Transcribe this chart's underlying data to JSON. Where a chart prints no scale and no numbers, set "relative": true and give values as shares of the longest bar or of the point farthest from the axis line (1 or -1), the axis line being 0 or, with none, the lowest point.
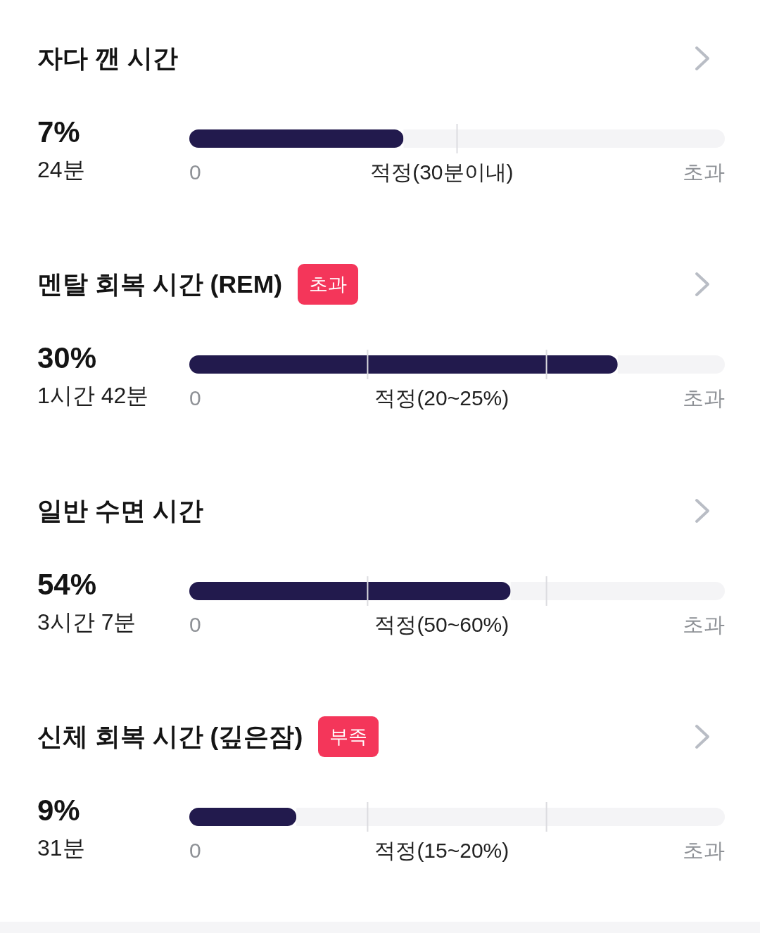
{
  "chart_data": [
    {
      "type": "bar",
      "orientation": "horizontal",
      "stacked": true,
      "relative": true,
      "title": "자다 깬 시간",
      "categories": [
        null
      ],
      "series": [
        {
          "color": "#221a4d",
          "values": [
            0.4
          ]
        },
        {
          "color": "#f4f4f6",
          "values": [
            0.6
          ]
        }
      ],
      "ref_lines": [
        {
          "axis": "x",
          "value": 0.5,
          "color": "#dcdce0"
        }
      ],
      "annotations": [
        "7%",
        "24분",
        "0",
        "적정(30분이내)",
        "초과"
      ]
    },
    {
      "type": "bar",
      "orientation": "horizontal",
      "stacked": true,
      "relative": true,
      "title": "멘탈 회복 시간 (REM)",
      "categories": [
        null
      ],
      "series": [
        {
          "color": "#221a4d",
          "values": [
            0.8
          ]
        },
        {
          "color": "#f4f4f6",
          "values": [
            0.2
          ]
        }
      ],
      "ref_lines": [
        {
          "axis": "x",
          "value": 0.333,
          "color": "#dcdce0"
        },
        {
          "axis": "x",
          "value": 0.667,
          "color": "#dcdce0"
        }
      ],
      "annotations": [
        "초과",
        "30%",
        "1시간 42분",
        "0",
        "적정(20~25%)",
        "초과"
      ]
    },
    {
      "type": "bar",
      "orientation": "horizontal",
      "stacked": true,
      "relative": true,
      "title": "일반 수면 시간",
      "categories": [
        null
      ],
      "series": [
        {
          "color": "#221a4d",
          "values": [
            0.6
          ]
        },
        {
          "color": "#f4f4f6",
          "values": [
            0.4
          ]
        }
      ],
      "ref_lines": [
        {
          "axis": "x",
          "value": 0.333,
          "color": "#dcdce0"
        },
        {
          "axis": "x",
          "value": 0.667,
          "color": "#dcdce0"
        }
      ],
      "annotations": [
        "54%",
        "3시간 7분",
        "0",
        "적정(50~60%)",
        "초과"
      ]
    },
    {
      "type": "bar",
      "orientation": "horizontal",
      "stacked": true,
      "relative": true,
      "title": "신체 회복 시간 (깊은잠)",
      "categories": [
        null
      ],
      "series": [
        {
          "color": "#221a4d",
          "values": [
            0.2
          ]
        },
        {
          "color": "#f4f4f6",
          "values": [
            0.8
          ]
        }
      ],
      "ref_lines": [
        {
          "axis": "x",
          "value": 0.333,
          "color": "#dcdce0"
        },
        {
          "axis": "x",
          "value": 0.667,
          "color": "#dcdce0"
        }
      ],
      "annotations": [
        "부족",
        "9%",
        "31분",
        "0",
        "적정(15~20%)",
        "초과"
      ]
    }
  ]
}
